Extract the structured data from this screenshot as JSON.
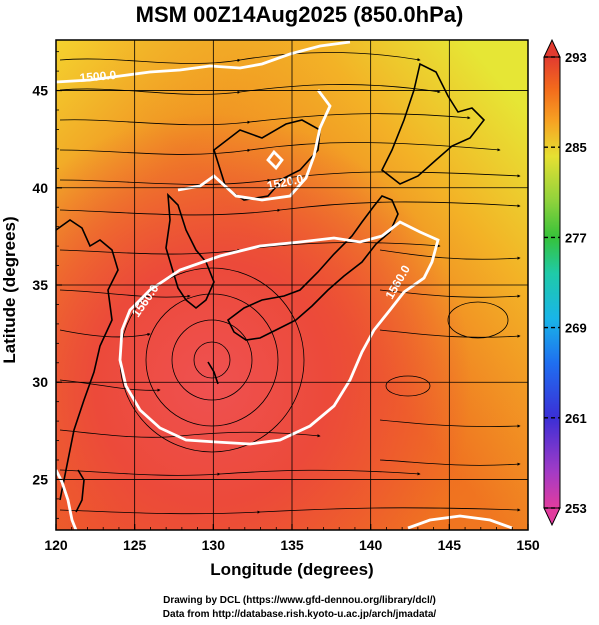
{
  "title": "MSM 00Z14Aug2025 (850.0hPa)",
  "chart_data": {
    "type": "heatmap",
    "title": "MSM 00Z14Aug2025 (850.0hPa)",
    "xlabel": "Longitude (degrees)",
    "ylabel": "Latitude  (degrees)",
    "xlim": [
      120,
      150
    ],
    "ylim": [
      22.4,
      47.6
    ],
    "x_ticks": [
      "120",
      "125",
      "130",
      "135",
      "140",
      "145",
      "150"
    ],
    "y_ticks": [
      "25",
      "30",
      "35",
      "40",
      "45"
    ],
    "grid": true,
    "colorbar": {
      "min": 253,
      "max": 293,
      "ticks": [
        "293",
        "285",
        "277",
        "269",
        "261",
        "253"
      ],
      "colors": [
        "#e23c9e",
        "#a33bc6",
        "#3b2fd6",
        "#1f6ef0",
        "#19b5e8",
        "#1fcaa8",
        "#36c23a",
        "#8ed23c",
        "#e6e032",
        "#f7a022",
        "#f36a1c",
        "#e13b30"
      ]
    },
    "contours": [
      {
        "label": "1500.0",
        "level": 1500.0
      },
      {
        "label": "1520.0",
        "level": 1520.0
      },
      {
        "label": "1560.0",
        "level": 1560.0
      },
      {
        "label": "1560.0",
        "level": 1560.0
      }
    ]
  },
  "credits": {
    "line1": "Drawing by DCL (https://www.gfd-dennou.org/library/dcl/)",
    "line2": "Data from http://database.rish.kyoto-u.ac.jp/arch/jmadata/"
  }
}
